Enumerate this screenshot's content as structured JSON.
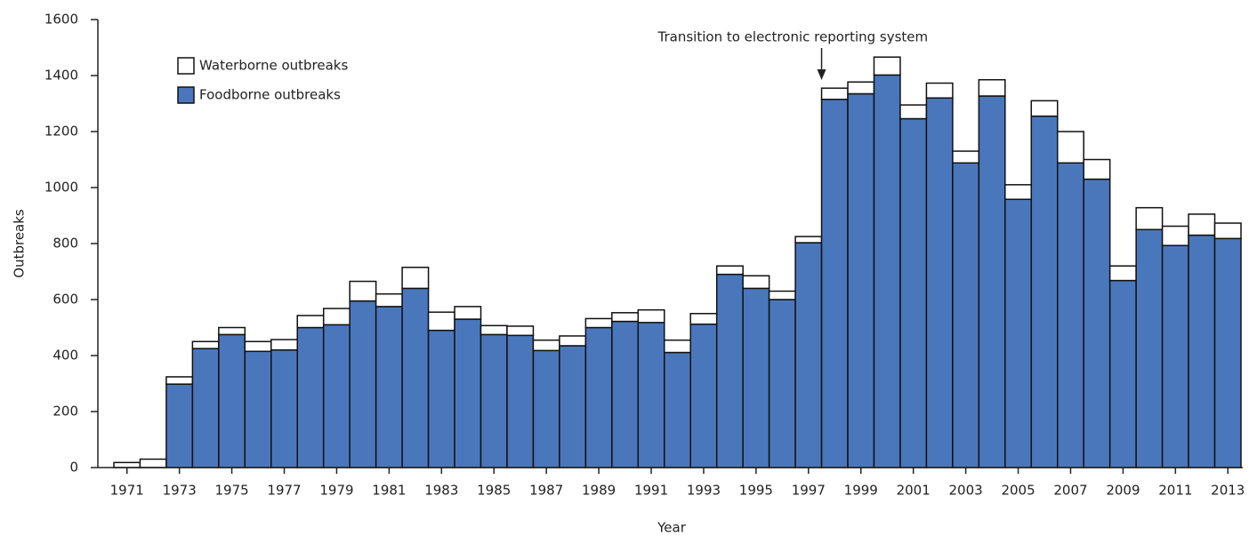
{
  "chart_data": {
    "type": "stacked_bar",
    "x_label": "Year",
    "y_label": "Outbreaks",
    "annotation": "Transition to electronic reporting system",
    "categories": [
      1971,
      null,
      1973,
      null,
      1975,
      null,
      1977,
      null,
      1979,
      null,
      1981,
      null,
      1983,
      null,
      1985,
      null,
      1987,
      null,
      1989,
      null,
      1991,
      null,
      1993,
      null,
      1995,
      null,
      1997,
      null,
      1999,
      null,
      2001,
      null,
      2003,
      null,
      2005,
      null,
      2007,
      null,
      2009,
      null,
      2011,
      null,
      2013
    ],
    "series": [
      {
        "name": "Foodborne outbreaks",
        "color": "#4a77bb",
        "values": [
          0,
          0,
          298,
          425,
          475,
          415,
          420,
          500,
          510,
          595,
          575,
          640,
          490,
          530,
          475,
          472,
          418,
          435,
          500,
          522,
          518,
          411,
          512,
          690,
          640,
          600,
          803,
          1315,
          1335,
          1402,
          1246,
          1320,
          1088,
          1327,
          958,
          1255,
          1088,
          1030,
          668,
          850,
          793,
          830,
          818
        ]
      },
      {
        "name": "Waterborne outbreaks",
        "color": "#ffffff",
        "values": [
          18,
          30,
          26,
          25,
          25,
          35,
          37,
          43,
          58,
          70,
          45,
          75,
          65,
          45,
          32,
          33,
          37,
          35,
          32,
          31,
          45,
          44,
          38,
          30,
          45,
          30,
          22,
          40,
          42,
          64,
          49,
          53,
          42,
          58,
          52,
          55,
          112,
          70,
          52,
          78,
          69,
          75,
          55
        ]
      }
    ],
    "ylim": [
      0,
      1600
    ],
    "yticks": [
      0,
      200,
      400,
      600,
      800,
      1000,
      1200,
      1400,
      1600
    ]
  }
}
